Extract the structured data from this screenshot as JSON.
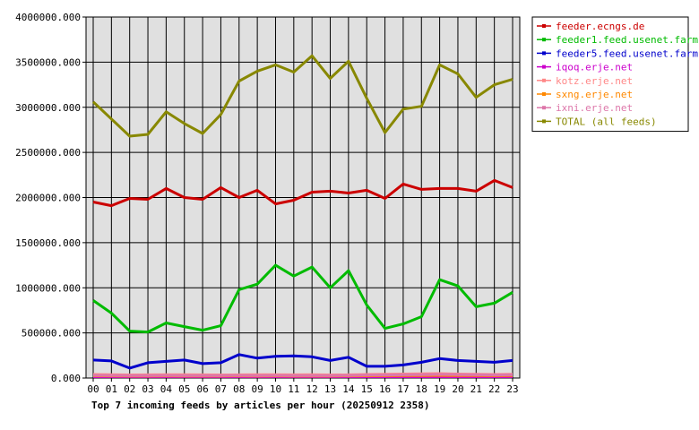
{
  "chart_data": {
    "type": "line",
    "title": "Top 7 incoming feeds by articles per hour (20250912 2358)",
    "x": [
      "00",
      "01",
      "02",
      "03",
      "04",
      "05",
      "06",
      "07",
      "08",
      "09",
      "10",
      "11",
      "12",
      "13",
      "14",
      "15",
      "16",
      "17",
      "18",
      "19",
      "20",
      "21",
      "22",
      "23"
    ],
    "y_ticks": [
      "0.000",
      "500000.000",
      "1000000.000",
      "1500000.000",
      "2000000.000",
      "2500000.000",
      "3000000.000",
      "3500000.000",
      "4000000.000"
    ],
    "ylim": [
      0,
      4000000
    ],
    "grid": true,
    "legend_position": "right",
    "series": [
      {
        "name": "feeder.ecngs.de",
        "color": "#cc0000",
        "values": [
          1950000,
          1910000,
          1990000,
          1980000,
          2100000,
          2000000,
          1980000,
          2110000,
          2000000,
          2080000,
          1930000,
          1970000,
          2060000,
          2070000,
          2050000,
          2080000,
          1990000,
          2150000,
          2090000,
          2100000,
          2100000,
          2070000,
          2190000,
          2110000
        ]
      },
      {
        "name": "feeder1.feed.usenet.farm",
        "color": "#00bb00",
        "values": [
          860000,
          720000,
          520000,
          510000,
          610000,
          570000,
          530000,
          580000,
          980000,
          1040000,
          1250000,
          1130000,
          1230000,
          1000000,
          1190000,
          810000,
          550000,
          600000,
          680000,
          1090000,
          1020000,
          790000,
          830000,
          950000
        ]
      },
      {
        "name": "feeder5.feed.usenet.farm",
        "color": "#0000cc",
        "values": [
          200000,
          190000,
          110000,
          170000,
          185000,
          200000,
          160000,
          170000,
          260000,
          220000,
          240000,
          245000,
          235000,
          195000,
          230000,
          130000,
          130000,
          145000,
          175000,
          215000,
          195000,
          185000,
          175000,
          195000
        ]
      },
      {
        "name": "iqoq.erje.net",
        "color": "#cc00cc",
        "values": [
          15000,
          15000,
          15000,
          15000,
          15000,
          15000,
          15000,
          15000,
          15000,
          15000,
          15000,
          15000,
          15000,
          15000,
          15000,
          15000,
          15000,
          15000,
          15000,
          15000,
          15000,
          15000,
          15000,
          15000
        ]
      },
      {
        "name": "kotz.erje.net",
        "color": "#ff8888",
        "values": [
          40000,
          38000,
          35000,
          36000,
          38000,
          37000,
          36000,
          35000,
          36000,
          37000,
          38000,
          36000,
          37000,
          35000,
          36000,
          40000,
          42000,
          45000,
          48000,
          50000,
          45000,
          42000,
          40000,
          42000
        ]
      },
      {
        "name": "sxng.erje.net",
        "color": "#ff8800",
        "values": [
          25000,
          24000,
          23000,
          22000,
          24000,
          23000,
          22000,
          23000,
          24000,
          23000,
          24000,
          23000,
          22000,
          23000,
          24000,
          25000,
          26000,
          27000,
          28000,
          29000,
          28000,
          27000,
          26000,
          27000
        ]
      },
      {
        "name": "ixni.erje.net",
        "color": "#dd77aa",
        "values": [
          30000,
          29000,
          28000,
          27000,
          29000,
          28000,
          27000,
          28000,
          29000,
          28000,
          29000,
          28000,
          27000,
          28000,
          29000,
          32000,
          34000,
          36000,
          38000,
          40000,
          38000,
          36000,
          34000,
          36000
        ]
      },
      {
        "name": "TOTAL (all feeds)",
        "color": "#888800",
        "values": [
          3060000,
          2870000,
          2680000,
          2700000,
          2950000,
          2820000,
          2710000,
          2920000,
          3290000,
          3400000,
          3470000,
          3390000,
          3570000,
          3320000,
          3510000,
          3100000,
          2720000,
          2980000,
          3010000,
          3470000,
          3370000,
          3110000,
          3250000,
          3310000
        ]
      }
    ]
  }
}
